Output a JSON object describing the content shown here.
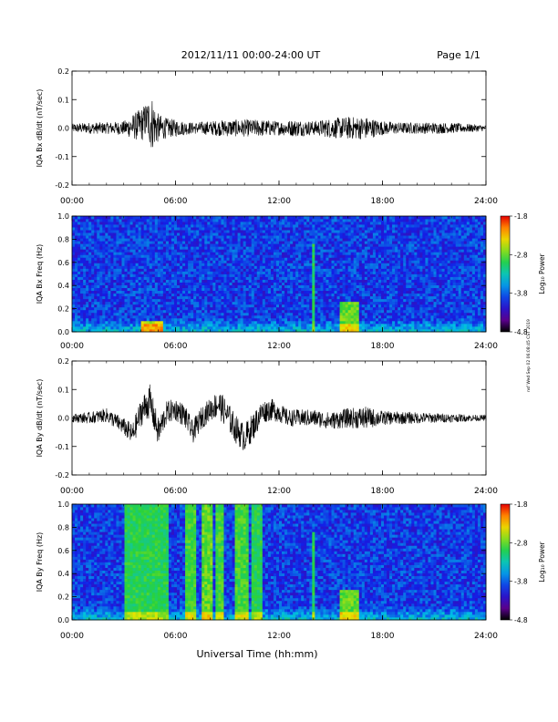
{
  "header": {
    "title": "2012/11/11  00:00-24:00 UT",
    "page": "Page 1/1",
    "side_note": "nsf Wed Sep 02 06:08:45 CST 2019"
  },
  "xlabel": "Universal Time (hh:mm)",
  "colors": {
    "trace": "#000000",
    "background": "#ffffff"
  },
  "chart_data": [
    {
      "type": "line",
      "ylabel": "IQA Bx dB/dt (nT/sec)",
      "xlim": [
        0,
        24
      ],
      "ylim": [
        -0.2,
        0.2
      ],
      "xticks": [
        "00:00",
        "06:00",
        "12:00",
        "18:00",
        "24:00"
      ],
      "yticks": [
        "-0.2",
        "-0.1",
        "0.0",
        "0.1",
        "0.2"
      ],
      "series": [
        {
          "x": [
            0,
            1,
            2,
            3,
            4,
            4.3,
            4.6,
            5,
            5.5,
            6,
            7,
            8,
            9,
            10,
            11,
            12,
            13,
            14,
            15,
            16,
            17,
            18,
            19,
            20,
            21,
            22,
            23,
            24
          ],
          "y": [
            0,
            0,
            0,
            0,
            0.01,
            0.03,
            0.02,
            0,
            0,
            0,
            0,
            0,
            0,
            0,
            0,
            0,
            0,
            0,
            0,
            0,
            0,
            0,
            0,
            0,
            0,
            0,
            0,
            0
          ],
          "amplitude": [
            0.015,
            0.02,
            0.02,
            0.025,
            0.06,
            0.06,
            0.1,
            0.05,
            0.035,
            0.03,
            0.02,
            0.025,
            0.03,
            0.03,
            0.03,
            0.025,
            0.03,
            0.025,
            0.035,
            0.04,
            0.04,
            0.025,
            0.02,
            0.02,
            0.02,
            0.018,
            0.015,
            0.01
          ]
        }
      ]
    },
    {
      "type": "heatmap",
      "ylabel": "IQA Bx Freq (Hz)",
      "xlim": [
        0,
        24
      ],
      "ylim": [
        0,
        1
      ],
      "xticks": [
        "00:00",
        "06:00",
        "12:00",
        "18:00",
        "24:00"
      ],
      "yticks": [
        "0.0",
        "0.2",
        "0.4",
        "0.6",
        "0.8",
        "1.0"
      ],
      "colorbar": {
        "label": "Log₁₀ Power",
        "range": [
          -4.8,
          -1.8
        ],
        "ticks": [
          "-1.8",
          "-2.8",
          "-3.8",
          "-4.8"
        ]
      },
      "events": [
        {
          "start": 4.0,
          "end": 5.2,
          "max_freq": 0.1,
          "level": -2.6
        },
        {
          "start": 14.0,
          "end": 14.1,
          "max_freq": 0.75,
          "level": -3.0
        },
        {
          "start": 15.5,
          "end": 16.6,
          "max_freq": 0.25,
          "level": -2.8
        }
      ]
    },
    {
      "type": "line",
      "ylabel": "IQA By dB/dt (nT/sec)",
      "xlim": [
        0,
        24
      ],
      "ylim": [
        -0.2,
        0.2
      ],
      "xticks": [
        "00:00",
        "06:00",
        "12:00",
        "18:00",
        "24:00"
      ],
      "yticks": [
        "-0.2",
        "-0.1",
        "0.0",
        "0.1",
        "0.2"
      ],
      "series": [
        {
          "x": [
            0,
            1,
            2,
            3,
            3.5,
            4,
            4.5,
            5,
            5.5,
            6,
            6.5,
            7,
            7.5,
            8,
            8.5,
            9,
            9.5,
            10,
            10.5,
            11,
            11.5,
            12,
            12.5,
            13,
            14,
            15,
            16,
            17,
            18,
            20,
            22,
            24
          ],
          "y": [
            0,
            0,
            0.01,
            -0.03,
            -0.06,
            0.02,
            0.06,
            -0.05,
            0.02,
            0.03,
            0.01,
            -0.05,
            0,
            0.03,
            0.05,
            0.01,
            -0.04,
            -0.07,
            -0.03,
            0.02,
            0.03,
            0.02,
            0,
            0,
            0,
            -0.01,
            0,
            0,
            0,
            0,
            0,
            0
          ],
          "amplitude": [
            0.015,
            0.02,
            0.025,
            0.03,
            0.04,
            0.05,
            0.06,
            0.05,
            0.04,
            0.04,
            0.04,
            0.04,
            0.04,
            0.04,
            0.05,
            0.05,
            0.05,
            0.05,
            0.05,
            0.04,
            0.04,
            0.035,
            0.03,
            0.03,
            0.03,
            0.03,
            0.035,
            0.04,
            0.025,
            0.02,
            0.015,
            0.01
          ]
        }
      ]
    },
    {
      "type": "heatmap",
      "ylabel": "IQA By Freq (Hz)",
      "xlim": [
        0,
        24
      ],
      "ylim": [
        0,
        1
      ],
      "xticks": [
        "00:00",
        "06:00",
        "12:00",
        "18:00",
        "24:00"
      ],
      "yticks": [
        "0.0",
        "0.2",
        "0.4",
        "0.6",
        "0.8",
        "1.0"
      ],
      "colorbar": {
        "label": "Log₁₀ Power",
        "range": [
          -4.8,
          -1.8
        ],
        "ticks": [
          "-1.8",
          "-2.8",
          "-3.8",
          "-4.8"
        ]
      },
      "events": [
        {
          "start": 3.0,
          "end": 5.6,
          "max_freq": 1.0,
          "level": -3.0
        },
        {
          "start": 6.6,
          "end": 7.2,
          "max_freq": 1.0,
          "level": -2.9
        },
        {
          "start": 7.6,
          "end": 8.1,
          "max_freq": 1.0,
          "level": -2.8
        },
        {
          "start": 8.4,
          "end": 8.8,
          "max_freq": 1.0,
          "level": -2.9
        },
        {
          "start": 9.4,
          "end": 10.2,
          "max_freq": 1.0,
          "level": -2.9
        },
        {
          "start": 10.4,
          "end": 11.0,
          "max_freq": 1.0,
          "level": -3.0
        },
        {
          "start": 14.0,
          "end": 14.1,
          "max_freq": 0.75,
          "level": -3.0
        },
        {
          "start": 15.5,
          "end": 16.6,
          "max_freq": 0.25,
          "level": -2.8
        }
      ]
    }
  ]
}
